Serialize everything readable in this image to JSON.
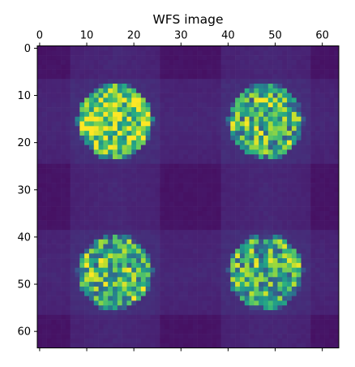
{
  "chart_data": {
    "type": "heatmap",
    "title": "WFS image",
    "xlabel": "",
    "ylabel": "",
    "grid": false,
    "colormap": "viridis",
    "image_shape": [
      64,
      64
    ],
    "xlim": [
      -0.5,
      63.5
    ],
    "ylim": [
      63.5,
      -0.5
    ],
    "x_axis_position": "top",
    "x_ticks": [
      0,
      10,
      20,
      30,
      40,
      50,
      60
    ],
    "x_tick_labels": [
      "0",
      "10",
      "20",
      "30",
      "40",
      "50",
      "60"
    ],
    "y_ticks": [
      0,
      10,
      20,
      30,
      40,
      50,
      60
    ],
    "y_tick_labels": [
      "0",
      "10",
      "20",
      "30",
      "40",
      "50",
      "60"
    ],
    "background_value": 0.06,
    "spots": [
      {
        "name": "upper-left",
        "center_x": 16,
        "center_y": 15.5,
        "radius": 8.1,
        "mean_intensity": 0.72
      },
      {
        "name": "upper-right",
        "center_x": 48,
        "center_y": 15.5,
        "radius": 8.1,
        "mean_intensity": 0.58
      },
      {
        "name": "lower-left",
        "center_x": 16,
        "center_y": 47.5,
        "radius": 8.1,
        "mean_intensity": 0.58
      },
      {
        "name": "lower-right",
        "center_x": 48,
        "center_y": 47.5,
        "radius": 8.1,
        "mean_intensity": 0.6
      }
    ],
    "value_range": [
      0,
      1
    ]
  }
}
